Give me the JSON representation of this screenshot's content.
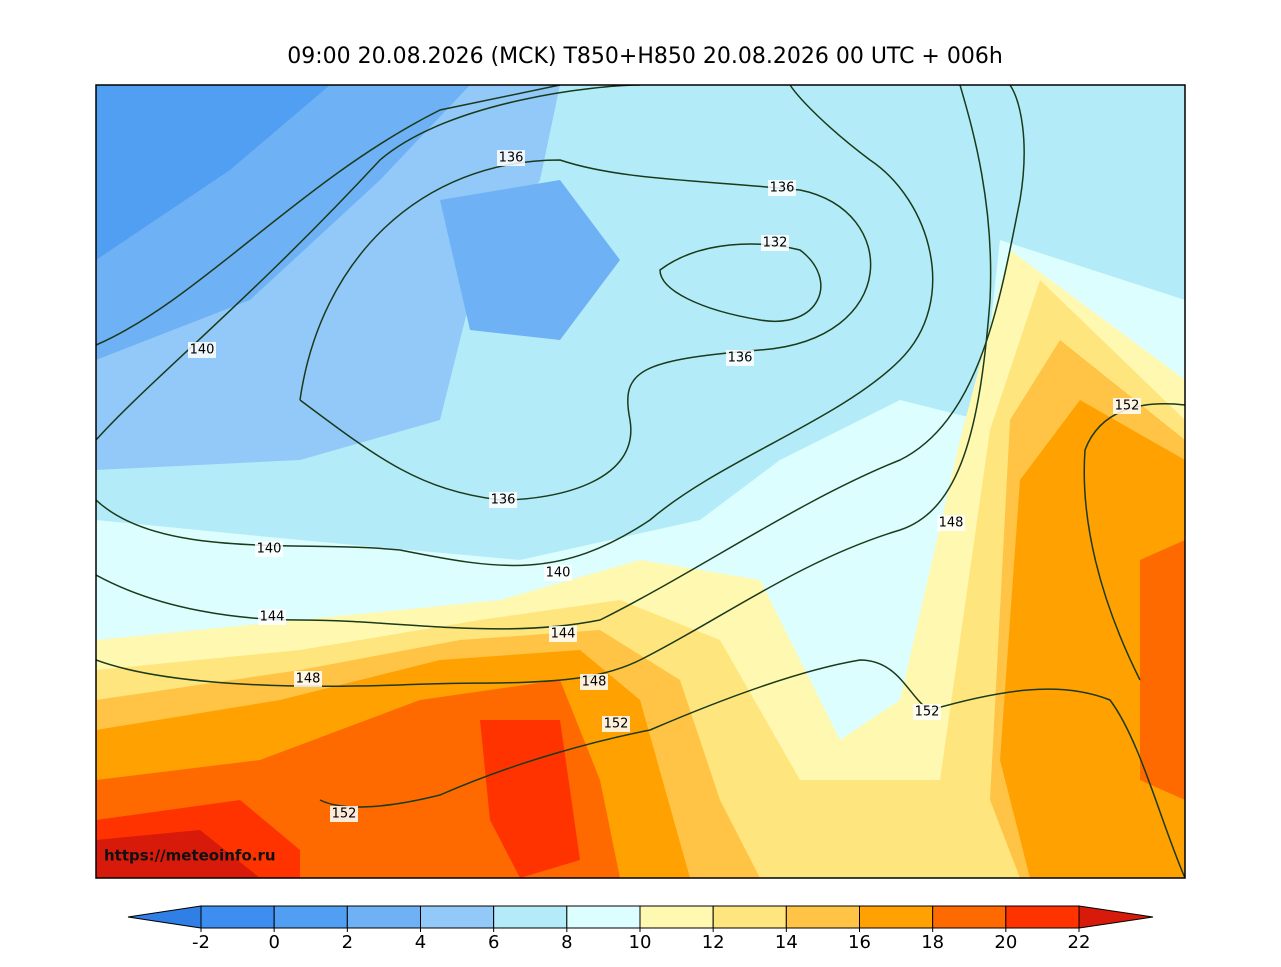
{
  "title": "09:00 20.08.2026 (MCK) T850+H850 20.08.2026 00 UTC + 006h",
  "source_url": "https://meteoinfo.ru",
  "contour_labels": [
    140,
    136,
    136,
    132,
    136,
    136,
    140,
    140,
    144,
    144,
    148,
    148,
    148,
    152,
    152,
    152,
    152
  ],
  "colorbar": {
    "ticks": [
      -2,
      0,
      2,
      4,
      6,
      8,
      10,
      12,
      14,
      16,
      18,
      20,
      22
    ],
    "colors": [
      "#2f7fe6",
      "#3d8ef0",
      "#519ff2",
      "#6fb1f5",
      "#92c9f8",
      "#b3ecf8",
      "#dcfefe",
      "#fff8b0",
      "#ffe57e",
      "#ffc445",
      "#ffa100",
      "#ff6a00",
      "#ff3300",
      "#d81a0a"
    ]
  }
}
